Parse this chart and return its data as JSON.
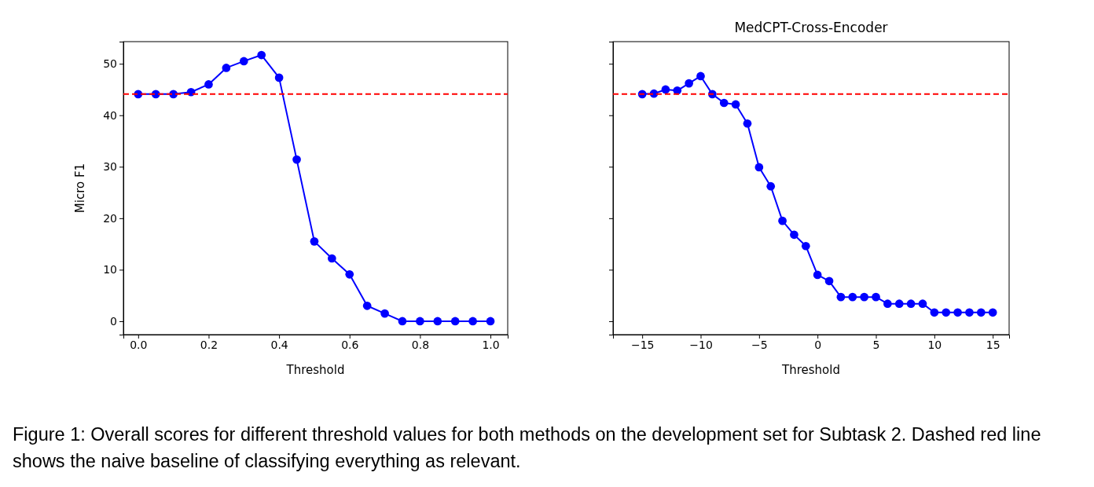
{
  "chart_data": [
    {
      "type": "line",
      "ylabel": "Micro F1",
      "xlabel": "Threshold",
      "marker": "circle",
      "line_style": "solid",
      "grid": false,
      "x": [
        0,
        0.05,
        0.1,
        0.15,
        0.2,
        0.25,
        0.3,
        0.35,
        0.4,
        0.45,
        0.5,
        0.55,
        0.6,
        0.65,
        0.7,
        0.75,
        0.8,
        0.85,
        0.9,
        0.95,
        1.0
      ],
      "series": [
        {
          "color": "#0000ff",
          "values": [
            44.1,
            44.1,
            44.1,
            44.5,
            46.0,
            49.2,
            50.5,
            51.7,
            47.3,
            31.4,
            15.5,
            12.2,
            9.1,
            3.0,
            1.5,
            0,
            0,
            0,
            0,
            0,
            0
          ]
        }
      ],
      "xlim": [
        -0.042,
        1.049
      ],
      "xticks": [
        {
          "value": 0,
          "label": "0.0"
        },
        {
          "value": 0.2,
          "label": "0.2"
        },
        {
          "value": 0.4,
          "label": "0.4"
        },
        {
          "value": 0.6,
          "label": "0.6"
        },
        {
          "value": 0.8,
          "label": "0.8"
        },
        {
          "value": 1,
          "label": "1.0"
        }
      ],
      "ylim": [
        -2.6,
        54.3
      ],
      "yticks": [
        0,
        10,
        20,
        30,
        40,
        50
      ],
      "ref_lines": [
        {
          "axis": "y",
          "value": 44.1,
          "color": "#ff0000",
          "line_style": "dashed"
        }
      ],
      "annotations": [
        "Figure 1: Overall scores for different threshold values for both methods on the development set for Subtask 2. Dashed red line shows the naive baseline of classifying everything as relevant."
      ]
    },
    {
      "type": "line",
      "title": "MedCPT-Cross-Encoder",
      "xlabel": "Threshold",
      "marker": "circle",
      "line_style": "solid",
      "grid": false,
      "tick_labels": "x",
      "x": [
        -15,
        -14,
        -13,
        -12,
        -11,
        -10,
        -9,
        -8,
        -7,
        -6,
        -5,
        -4,
        -3,
        -2,
        -1,
        0,
        1,
        2,
        3,
        4,
        5,
        6,
        7,
        8,
        9,
        10,
        11,
        12,
        13,
        14,
        15
      ],
      "series": [
        {
          "color": "#0000ff",
          "values": [
            44.1,
            44.2,
            45.0,
            44.8,
            46.2,
            47.6,
            44.1,
            42.4,
            42.1,
            38.4,
            29.9,
            26.2,
            19.5,
            16.8,
            14.6,
            9.0,
            7.8,
            4.7,
            4.7,
            4.7,
            4.7,
            3.4,
            3.4,
            3.4,
            3.4,
            1.7,
            1.7,
            1.7,
            1.7,
            1.7,
            1.7
          ]
        }
      ],
      "xlim": [
        -17.5,
        16.4
      ],
      "xticks": [
        {
          "value": -15,
          "label": "−15"
        },
        {
          "value": -10,
          "label": "−10"
        },
        {
          "value": -5,
          "label": "−5"
        },
        0,
        5,
        10,
        15
      ],
      "ylim": [
        -2.6,
        54.3
      ],
      "yticks": [
        0,
        10,
        20,
        30,
        40,
        50
      ],
      "ref_lines": [
        {
          "axis": "y",
          "value": 44.1,
          "color": "#ff0000",
          "line_style": "dashed"
        }
      ]
    }
  ]
}
